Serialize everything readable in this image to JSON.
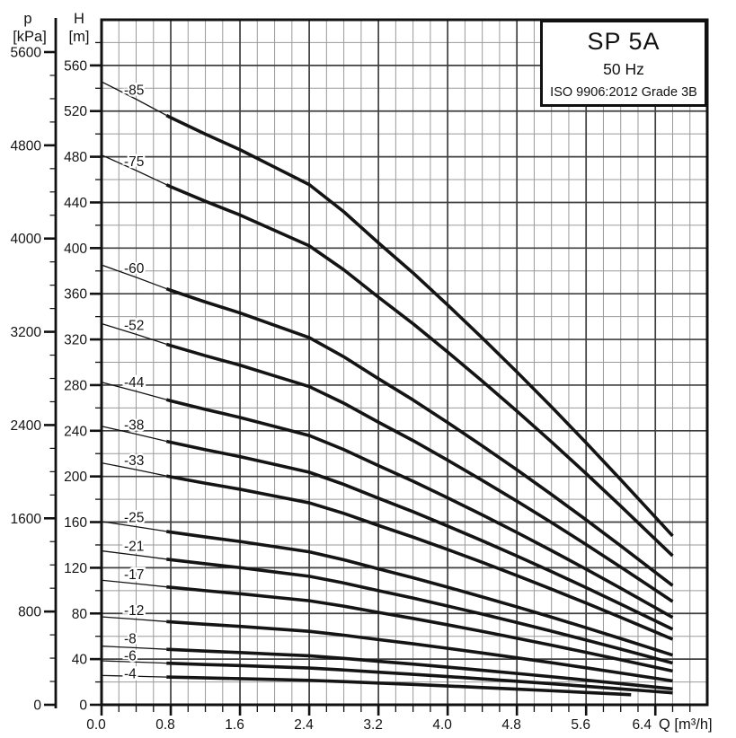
{
  "title_box": {
    "model": "SP 5A",
    "frequency": "50 Hz",
    "standard": "ISO 9906:2012 Grade 3B"
  },
  "chart_data": {
    "type": "line",
    "title": "SP 5A",
    "subtitle": "50 Hz",
    "standard": "ISO 9906:2012 Grade 3B",
    "x_axis": {
      "name": "Q",
      "unit": "[m³/h]",
      "label": "Q [m³/h]",
      "min": 0,
      "max": 7.0,
      "major_step": 0.8,
      "minor_step": 0.2,
      "tick_labels": [
        "0.0",
        "0.8",
        "1.6",
        "2.4",
        "3.2",
        "4.0",
        "4.8",
        "5.6",
        "6.4"
      ]
    },
    "h_axis": {
      "name": "H",
      "unit": "[m]",
      "min": 0,
      "max": 600,
      "major_step": 40,
      "minor_step": 20,
      "tick_labels": [
        "0",
        "40",
        "80",
        "120",
        "160",
        "200",
        "240",
        "280",
        "320",
        "360",
        "400",
        "440",
        "480",
        "520",
        "560"
      ]
    },
    "p_axis": {
      "name": "p",
      "unit": "[kPa]",
      "min": 0,
      "max": 5600,
      "major_step": 800,
      "minor_step": 200,
      "tick_labels": [
        "0",
        "800",
        "1600",
        "2400",
        "3200",
        "4000",
        "4800",
        "5600"
      ]
    },
    "grid": {
      "h_major_step_m": 40,
      "h_minor_step_m": 20,
      "v_major_step": 0.8,
      "v_minor_step": 0.2,
      "shown": true
    },
    "min_flow_Q": 0.75,
    "per_stage_curve": {
      "Q": [
        0,
        0.4,
        0.8,
        1.2,
        1.6,
        2.0,
        2.4,
        2.8,
        3.2,
        3.6,
        4.0,
        4.4,
        4.8,
        5.2,
        5.6,
        6.0,
        6.3,
        6.6
      ],
      "h_per_stage": [
        6.42,
        6.24,
        6.05,
        5.88,
        5.72,
        5.54,
        5.36,
        5.08,
        4.76,
        4.45,
        4.12,
        3.78,
        3.43,
        3.07,
        2.7,
        2.32,
        2.03,
        1.74
      ]
    },
    "series": [
      {
        "label": "-85",
        "stages": 85,
        "q_end": 6.6,
        "label_dy": 0
      },
      {
        "label": "-75",
        "stages": 75,
        "q_end": 6.6,
        "label_dy": 0
      },
      {
        "label": "-60",
        "stages": 60,
        "q_end": 6.6,
        "label_dy": 0
      },
      {
        "label": "-52",
        "stages": 52,
        "q_end": 6.6,
        "label_dy": 0
      },
      {
        "label": "-44",
        "stages": 44,
        "q_end": 6.6,
        "label_dy": 0
      },
      {
        "label": "-38",
        "stages": 38,
        "q_end": 6.6,
        "label_dy": 0
      },
      {
        "label": "-33",
        "stages": 33,
        "q_end": 6.6,
        "label_dy": 0
      },
      {
        "label": "-25",
        "stages": 25,
        "q_end": 6.6,
        "label_dy": 0
      },
      {
        "label": "-21",
        "stages": 21,
        "q_end": 6.6,
        "label_dy": 0
      },
      {
        "label": "-17",
        "stages": 17,
        "q_end": 6.6,
        "label_dy": 0
      },
      {
        "label": "-12",
        "stages": 12,
        "q_end": 6.6,
        "label_dy": 0
      },
      {
        "label": "-8",
        "stages": 8,
        "q_end": 6.6,
        "label_dy": 0
      },
      {
        "label": "-6",
        "stages": 6,
        "q_end": 6.6,
        "label_dy": 3
      },
      {
        "label": "-4",
        "stages": 4,
        "q_end": 6.12,
        "label_dy": 7
      }
    ]
  },
  "colors": {
    "curve": "#141414",
    "grid_minor": "#9a9a9a",
    "grid_major": "#3f3f3f",
    "axis": "#111111",
    "text": "#141414",
    "background": "#ffffff"
  }
}
